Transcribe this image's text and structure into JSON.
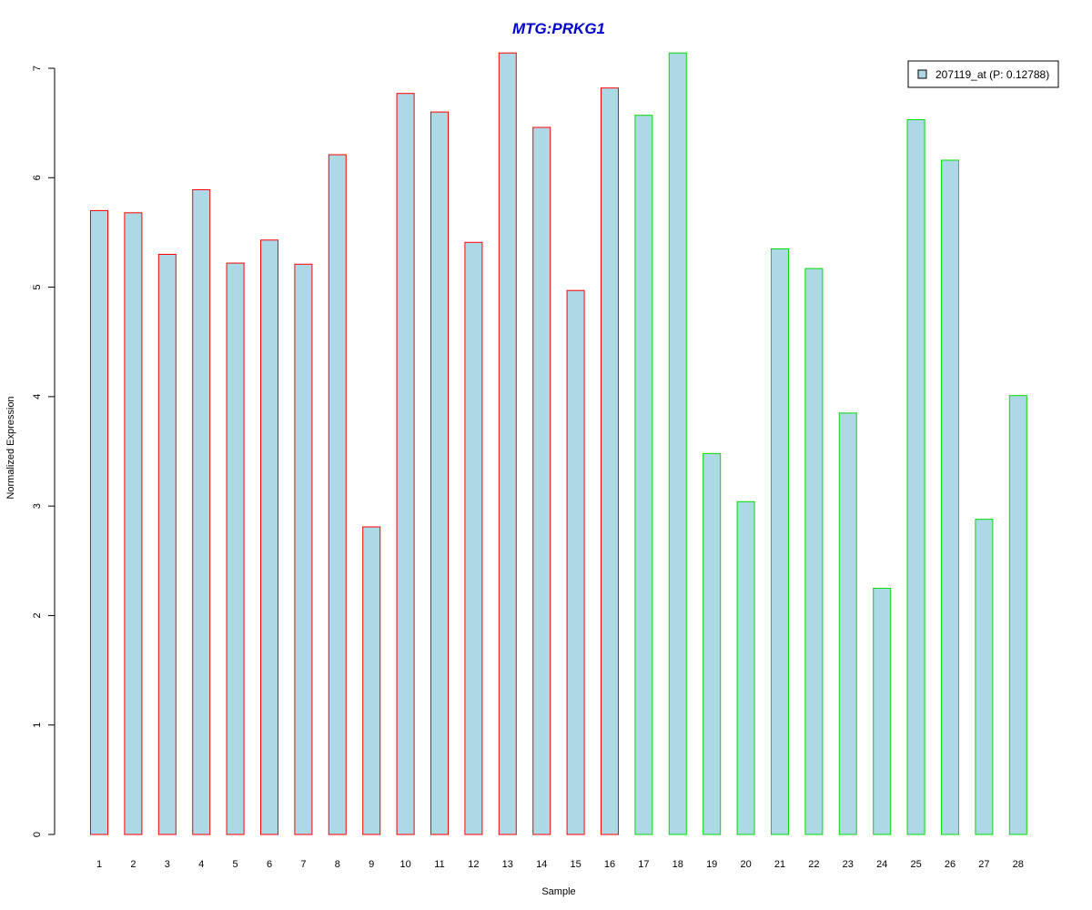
{
  "chart_data": {
    "type": "bar",
    "title": "MTG:PRKG1",
    "xlabel": "Sample",
    "ylabel": "Normalized Expression",
    "categories": [
      "1",
      "2",
      "3",
      "4",
      "5",
      "6",
      "7",
      "8",
      "9",
      "10",
      "11",
      "12",
      "13",
      "14",
      "15",
      "16",
      "17",
      "18",
      "19",
      "20",
      "21",
      "22",
      "23",
      "24",
      "25",
      "26",
      "27",
      "28"
    ],
    "series": [
      {
        "name": "207119_at (P: 0.12788)",
        "values": [
          5.7,
          5.68,
          5.3,
          5.89,
          5.22,
          5.43,
          5.21,
          6.21,
          2.81,
          6.77,
          6.6,
          5.41,
          7.14,
          6.46,
          4.97,
          6.82,
          6.57,
          7.14,
          3.48,
          3.04,
          5.35,
          5.17,
          3.85,
          2.25,
          6.53,
          6.16,
          2.88,
          4.01
        ]
      }
    ],
    "groups": [
      {
        "samples": "1-16",
        "border_color": "#ff0000"
      },
      {
        "samples": "17-28",
        "border_color": "#00dd00"
      }
    ],
    "ylim": [
      0,
      7
    ],
    "yticks": [
      "0",
      "1",
      "2",
      "3",
      "4",
      "5",
      "6",
      "7"
    ],
    "legend_position": "top-right",
    "bar_fill": "#add8e6",
    "title_color": "#0000cc",
    "grid": false
  }
}
